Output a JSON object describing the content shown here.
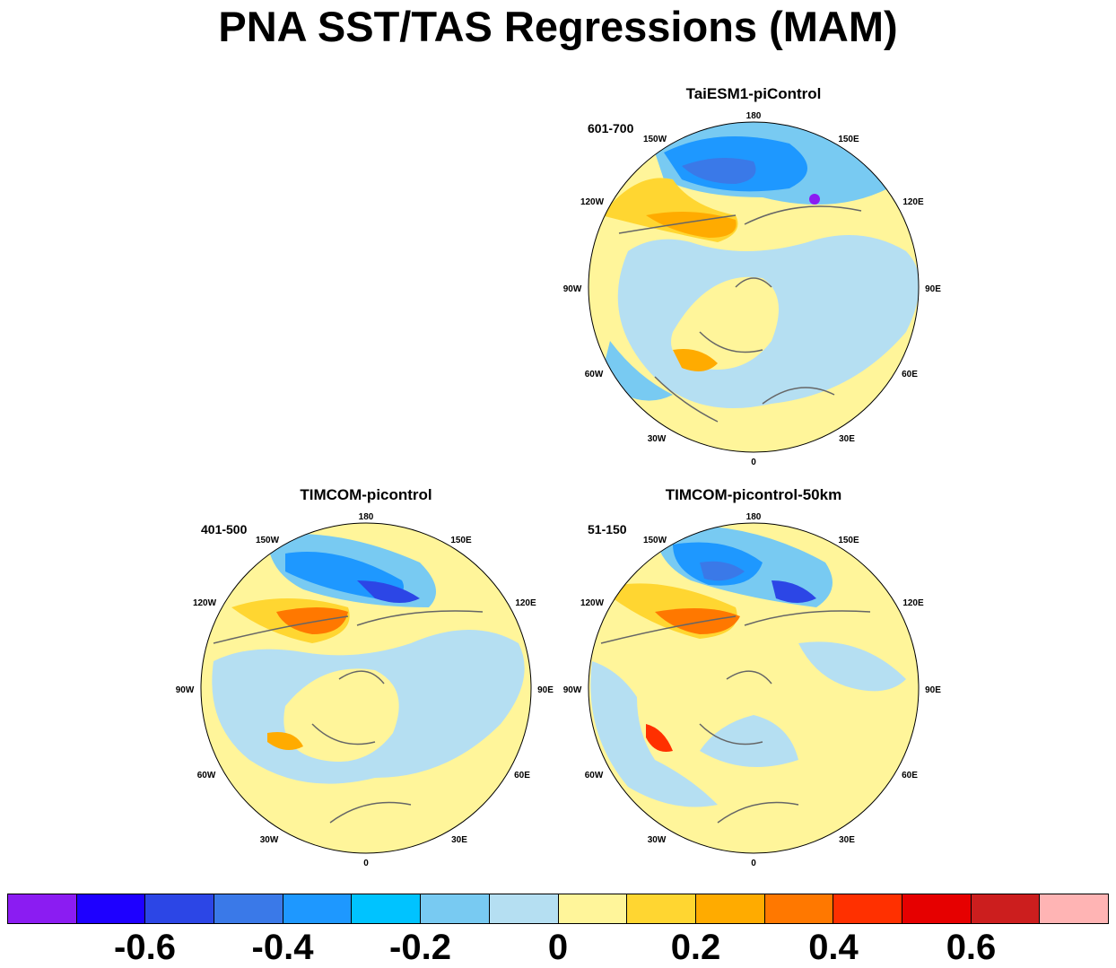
{
  "title": "PNA SST/TAS Regressions (MAM)",
  "panels": [
    {
      "id": "taiesm",
      "title": "TaiESM1-piControl",
      "period": "601-700"
    },
    {
      "id": "timcom",
      "title": "TIMCOM-picontrol",
      "period": "401-500"
    },
    {
      "id": "timcom50",
      "title": "TIMCOM-picontrol-50km",
      "period": "51-150"
    }
  ],
  "lon_labels": [
    "180",
    "150E",
    "120E",
    "90E",
    "60E",
    "30E",
    "0",
    "30W",
    "60W",
    "90W",
    "120W",
    "150W"
  ],
  "colorbar": {
    "colors": [
      "#8B1CF2",
      "#1E00FF",
      "#2C46E6",
      "#3A79E8",
      "#1E98FF",
      "#00C3FF",
      "#78CAF2",
      "#B5DFF2",
      "#FFF59A",
      "#FFD631",
      "#FFAB00",
      "#FF7800",
      "#FF3000",
      "#E60000",
      "#CC1E1E",
      "#FFB4B4"
    ],
    "tick_labels": [
      "-0.6",
      "-0.4",
      "-0.2",
      "0",
      "0.2",
      "0.4",
      "0.6"
    ]
  }
}
